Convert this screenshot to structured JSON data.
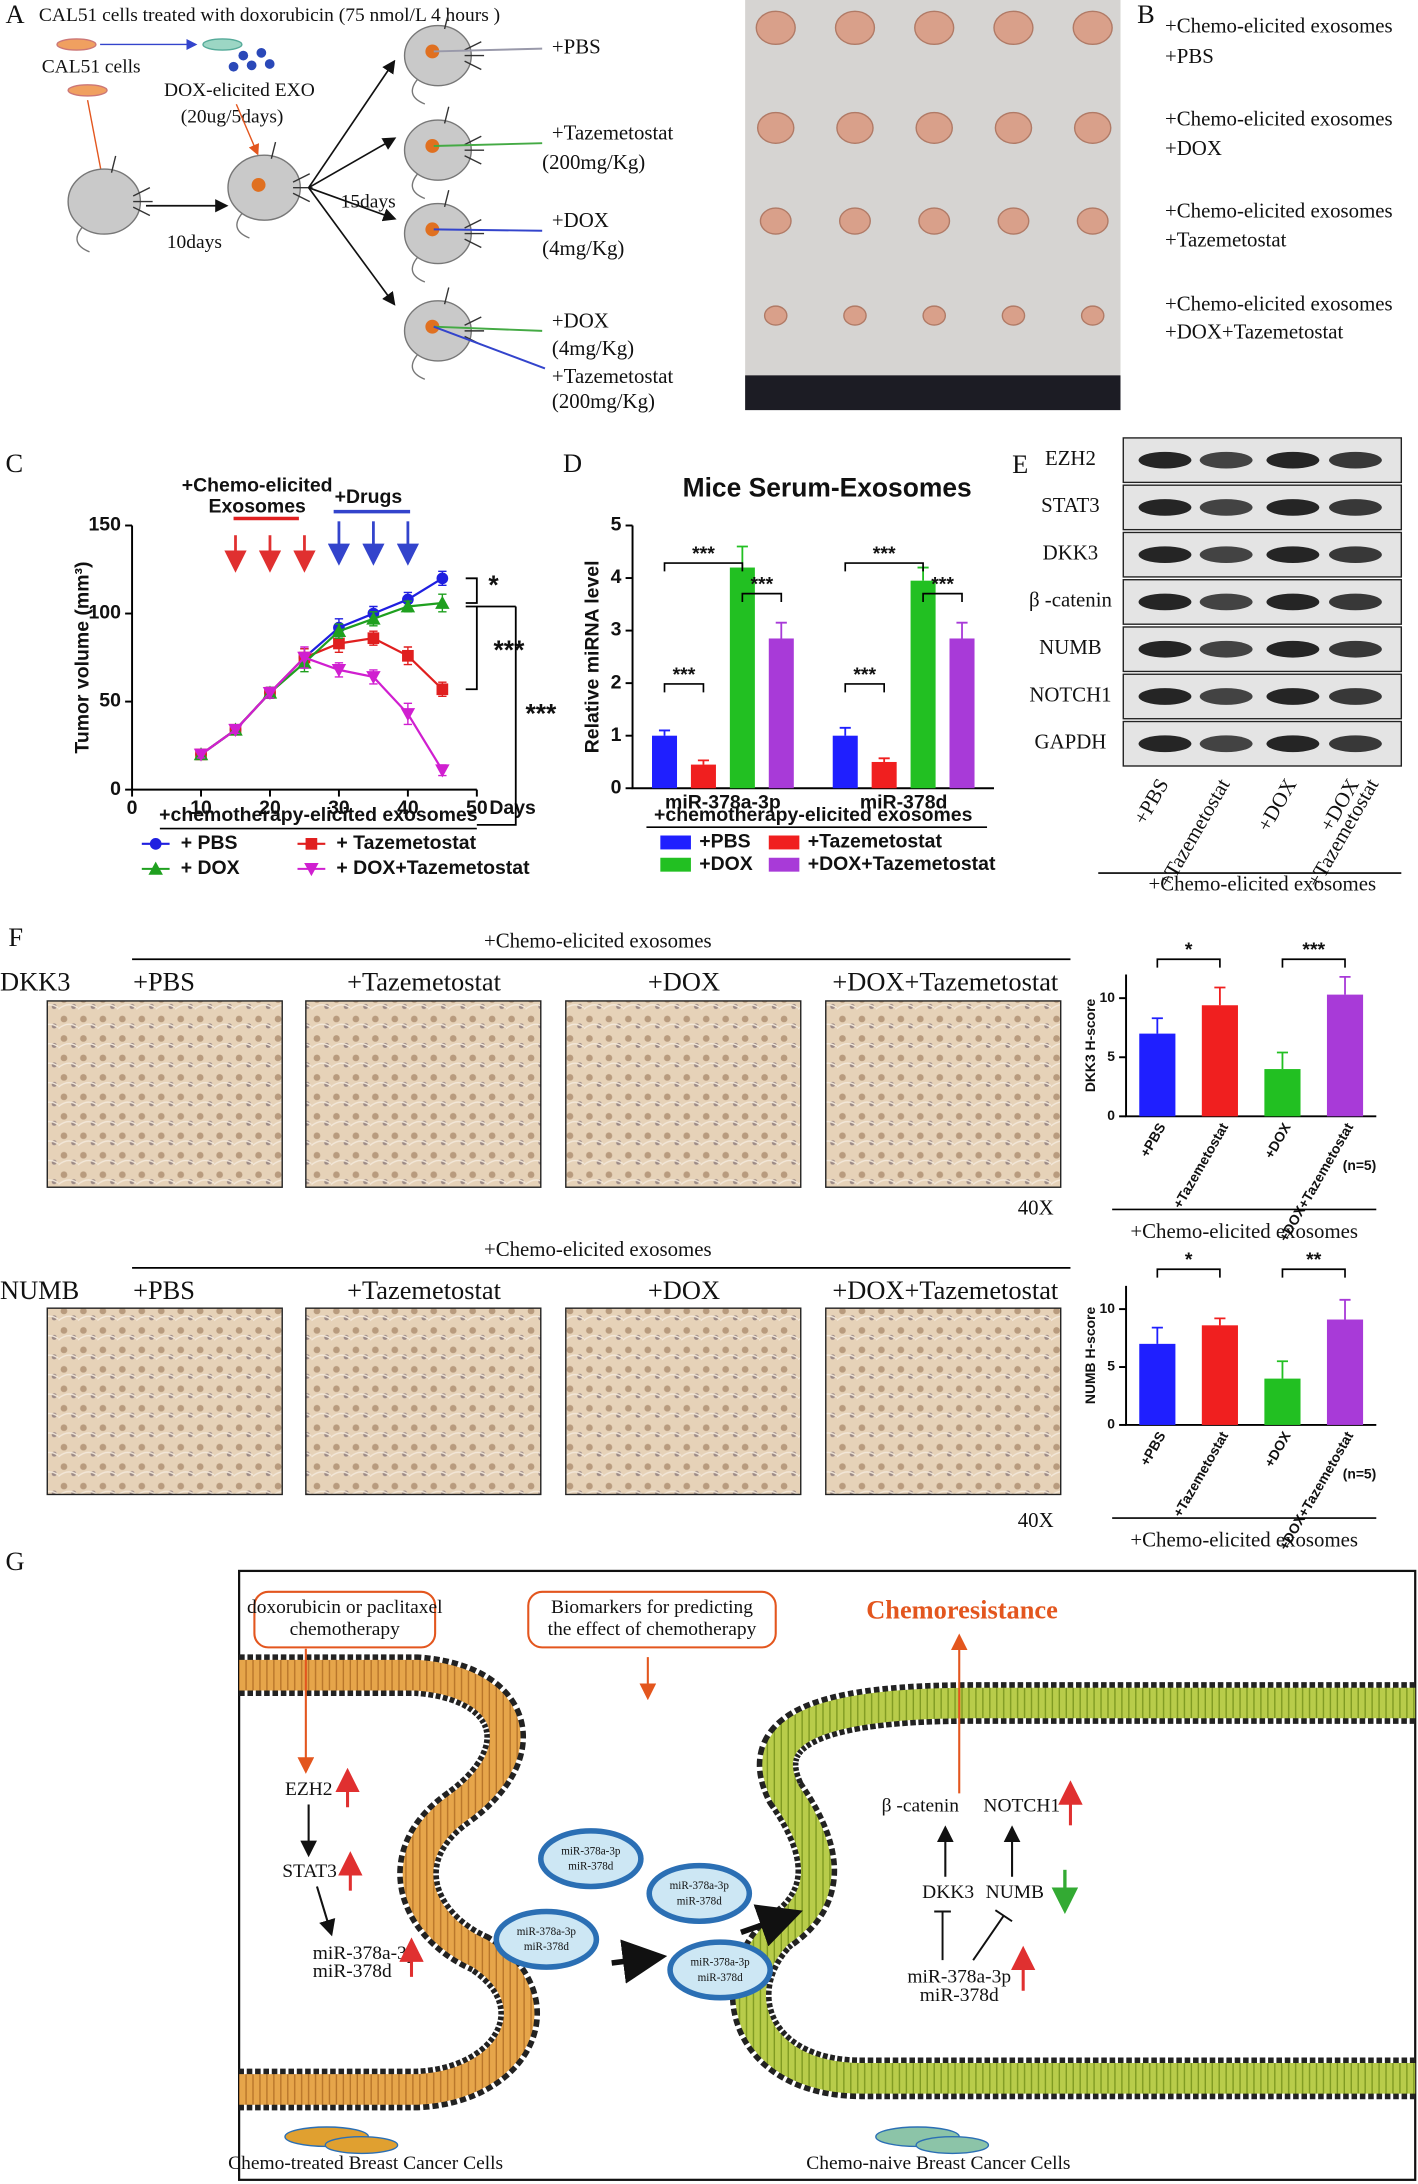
{
  "panel_a": {
    "label": "A",
    "title": "CAL51 cells treated with doxorubicin (75 nmol/L  4 hours )",
    "cells": "CAL51 cells",
    "exosomes": "DOX-elicited EXO",
    "exosome_dose": "(20ug/5days)",
    "interval_1": "10days",
    "interval_2": "15days",
    "groups": [
      [
        "+PBS"
      ],
      [
        "+Tazemetostat",
        "(200mg/Kg)"
      ],
      [
        "+DOX",
        "(4mg/Kg)"
      ],
      [
        "+DOX",
        "(4mg/Kg)",
        "+Tazemetostat",
        "(200mg/Kg)"
      ]
    ]
  },
  "panel_b": {
    "label": "B",
    "rows": [
      [
        "+Chemo-elicited exosomes",
        "+PBS"
      ],
      [
        "+Chemo-elicited exosomes",
        "+DOX"
      ],
      [
        "+Chemo-elicited exosomes",
        "+Tazemetostat"
      ],
      [
        "+Chemo-elicited exosomes",
        "+DOX+Tazemetostat"
      ]
    ]
  },
  "panel_e": {
    "label": "E",
    "proteins": [
      "EZH2",
      "STAT3",
      "DKK3",
      "β -catenin",
      "NUMB",
      "NOTCH1",
      "GAPDH"
    ],
    "lanes": [
      [
        "+PBS"
      ],
      [
        "+Tazemetostat"
      ],
      [
        "+DOX"
      ],
      [
        "+DOX",
        "+Tazemetostat"
      ]
    ],
    "group": "+Chemo-elicited exosomes"
  },
  "panel_f": {
    "label": "F",
    "markers": [
      "DKK3",
      "NUMB"
    ],
    "group": "+Chemo-elicited exosomes",
    "conditions": [
      "+PBS",
      "+Tazemetostat",
      "+DOX",
      "+DOX+Tazemetostat"
    ],
    "magnification": "40X"
  },
  "panel_g": {
    "label": "G",
    "treatment": [
      "doxorubicin or paclitaxel",
      "chemotherapy"
    ],
    "biomarkers": [
      "Biomarkers for predicting",
      "the effect of chemotherapy"
    ],
    "outcome": "Chemoresistance",
    "left": {
      "ezh2": "EZH2",
      "stat3": "STAT3",
      "mirna": [
        "miR-378a-3p",
        "miR-378d"
      ],
      "cells": "Chemo-treated Breast Cancer Cells"
    },
    "vesicles": [
      [
        "miR-378a-3p",
        "miR-378d"
      ],
      [
        "miR-378a-3p",
        "miR-378d"
      ],
      [
        "miR-378a-3p",
        "miR-378d"
      ],
      [
        "miR-378a-3p",
        "miR-378d"
      ]
    ],
    "right": {
      "beta_catenin": "β -catenin",
      "notch1": "NOTCH1",
      "dkk3": "DKK3",
      "numb": "NUMB",
      "mirna": [
        "miR-378a-3p",
        "miR-378d"
      ],
      "cells": "Chemo-naive Breast Cancer Cells"
    }
  },
  "chart_data": [
    {
      "type": "line",
      "panel": "C",
      "ylabel": "Tumor volume (mm³)",
      "xlabel": "Days",
      "group_label": "+chemotherapy-elicited exosomes",
      "x": [
        10,
        15,
        20,
        25,
        30,
        35,
        40,
        45
      ],
      "xlim": [
        0,
        50
      ],
      "xticks": [
        0,
        10,
        20,
        30,
        40,
        50
      ],
      "ylim": [
        0,
        150
      ],
      "yticks": [
        0,
        50,
        100,
        150
      ],
      "annotations": {
        "exosomes": [
          "+Chemo-elicited",
          "Exosomes"
        ],
        "exosome_days": [
          15,
          20,
          25
        ],
        "drugs": "+Drugs",
        "drug_days": [
          30,
          35,
          40
        ],
        "significance": [
          "*",
          "***",
          "***"
        ]
      },
      "series": [
        {
          "name": "+ PBS",
          "color": "#1f1fe0",
          "marker": "circle",
          "values": [
            20,
            34,
            55,
            75,
            92,
            100,
            108,
            120
          ],
          "errors": [
            2,
            2,
            3,
            5,
            5,
            4,
            4,
            4
          ]
        },
        {
          "name": "+ Tazemetostat",
          "color": "#e01f1f",
          "marker": "square",
          "values": [
            20,
            34,
            55,
            75,
            83,
            86,
            76,
            57
          ],
          "errors": [
            2,
            2,
            3,
            5,
            5,
            4,
            5,
            4
          ]
        },
        {
          "name": "+ DOX",
          "color": "#1fa01f",
          "marker": "triangle",
          "values": [
            20,
            34,
            55,
            72,
            90,
            97,
            104,
            106
          ],
          "errors": [
            2,
            2,
            3,
            5,
            4,
            4,
            3,
            5
          ]
        },
        {
          "name": "+ DOX+Tazemetostat",
          "color": "#d01fd0",
          "marker": "triangle-down",
          "values": [
            20,
            34,
            55,
            75,
            68,
            64,
            43,
            11
          ],
          "errors": [
            2,
            2,
            3,
            6,
            4,
            4,
            6,
            3
          ]
        }
      ]
    },
    {
      "type": "bar",
      "panel": "D",
      "title": "Mice Serum-Exosomes",
      "ylabel": "Relative miRNA level",
      "group_label": "+chemotherapy-elicited exosomes",
      "categories": [
        "miR-378a-3p",
        "miR-378d"
      ],
      "ylim": [
        0,
        5
      ],
      "yticks": [
        0,
        1,
        2,
        3,
        4,
        5
      ],
      "significance": [
        "***",
        "***",
        "***",
        "***",
        "***",
        "***"
      ],
      "series": [
        {
          "name": "+PBS",
          "color": "#1f1fff",
          "values": [
            1.0,
            1.0
          ],
          "errors": [
            0.1,
            0.15
          ]
        },
        {
          "name": "+Tazemetostat",
          "color": "#f01f1f",
          "values": [
            0.45,
            0.5
          ],
          "errors": [
            0.08,
            0.07
          ]
        },
        {
          "name": "+DOX",
          "color": "#22c022",
          "values": [
            4.2,
            3.95
          ],
          "errors": [
            0.4,
            0.25
          ]
        },
        {
          "name": "+DOX+Tazemetostat",
          "color": "#a83ad8",
          "values": [
            2.85,
            2.85
          ],
          "errors": [
            0.3,
            0.3
          ]
        }
      ]
    },
    {
      "type": "bar",
      "ylabel": "DKK3 H-score",
      "group_label": "+Chemo-elicited exosomes",
      "note": "(n=5)",
      "categories": [
        "+PBS",
        "+Tazemetostat",
        "+DOX",
        "+DOX+Tazemetostat"
      ],
      "values": [
        7,
        9.4,
        4,
        10.3
      ],
      "errors": [
        1.3,
        1.5,
        1.4,
        1.5
      ],
      "colors": [
        "#1f1fff",
        "#f01f1f",
        "#22c022",
        "#a83ad8"
      ],
      "ylim": [
        0,
        12
      ],
      "yticks": [
        0,
        5,
        10
      ],
      "significance": [
        "*",
        "***"
      ]
    },
    {
      "type": "bar",
      "ylabel": "NUMB H-score",
      "group_label": "+Chemo-elicited exosomes",
      "note": "(n=5)",
      "categories": [
        "+PBS",
        "+Tazemetostat",
        "+DOX",
        "+DOX+Tazemetostat"
      ],
      "values": [
        7,
        8.6,
        4,
        9.1
      ],
      "errors": [
        1.4,
        0.6,
        1.5,
        1.7
      ],
      "colors": [
        "#1f1fff",
        "#f01f1f",
        "#22c022",
        "#a83ad8"
      ],
      "ylim": [
        0,
        12
      ],
      "yticks": [
        0,
        5,
        10
      ],
      "significance": [
        "*",
        "**"
      ]
    }
  ]
}
